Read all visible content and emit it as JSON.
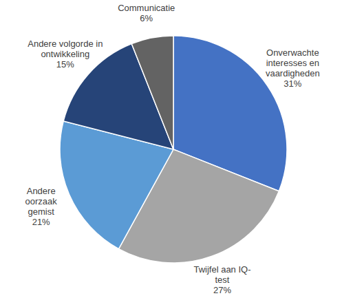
{
  "chart_data": {
    "type": "pie",
    "categories": [
      "Onverwachte interesses en vaardigheden",
      "Twijfel aan IQ-test",
      "Andere oorzaak gemist",
      "Andere volgorde in ontwikkeling",
      "Communicatie"
    ],
    "values": [
      31,
      27,
      21,
      15,
      6
    ],
    "value_labels": [
      "31%",
      "27%",
      "21%",
      "15%",
      "6%"
    ],
    "colors": [
      "#4472c4",
      "#a5a5a5",
      "#5b9bd5",
      "#264478",
      "#636363"
    ],
    "data_labels": true
  }
}
